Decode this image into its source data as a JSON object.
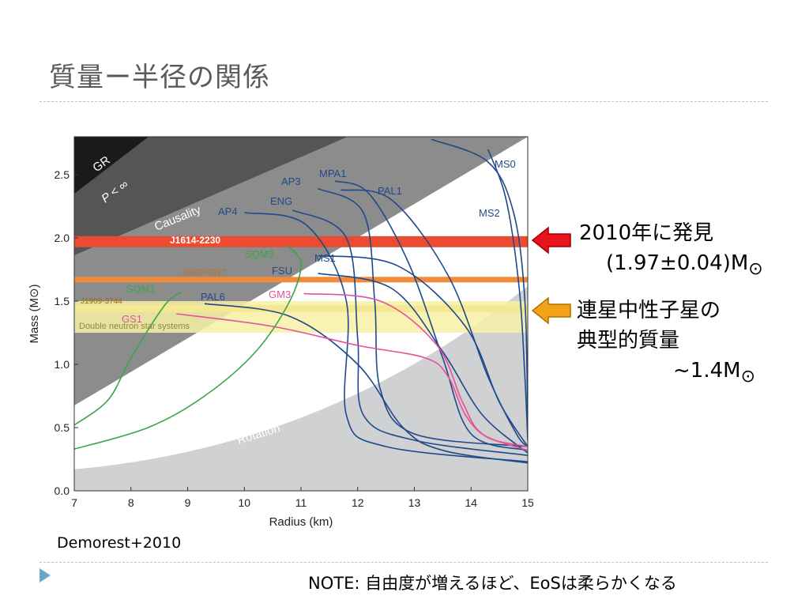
{
  "slide": {
    "title": "質量ー半径の関係",
    "credit": "Demorest+2010",
    "footnote": "NOTE: 自由度が増えるほど、EoSは柔らかくなる",
    "annotation_top": {
      "line1": "2010年に発見",
      "line2": "(1.97±0.04)M",
      "symbol": "⊙",
      "arrow_color": "#e8121a"
    },
    "annotation_bottom": {
      "line1": "連星中性子星の",
      "line2": "典型的質量",
      "line3": "~1.4M",
      "symbol": "⊙",
      "arrow_color": "#f4a11a"
    }
  },
  "chart_data": {
    "type": "line",
    "xlabel": "Radius (km)",
    "ylabel": "Mass (M⊙)",
    "xlim": [
      7,
      15
    ],
    "ylim": [
      0,
      2.8
    ],
    "xticks": [
      "7",
      "8",
      "9",
      "10",
      "11",
      "12",
      "13",
      "14",
      "15"
    ],
    "yticks": [
      "0.0",
      "0.5",
      "1.0",
      "1.5",
      "2.0",
      "2.5"
    ],
    "regions": [
      {
        "name": "GR",
        "color": "#1a1a1a"
      },
      {
        "name": "P < ∞",
        "color": "#555555"
      },
      {
        "name": "Causality",
        "color": "#8c8c8c"
      },
      {
        "name": "Rotation",
        "color": "#cfd1d3"
      }
    ],
    "bands": [
      {
        "label": "J1614-2230",
        "mass": 1.97,
        "color": "#ea4b31",
        "text_color": "#ffffff"
      },
      {
        "label": "J1903+0327",
        "mass": 1.67,
        "color": "#f28a3c",
        "text_color": "#c26a1a"
      },
      {
        "label": "J1909-3744",
        "mass": 1.44,
        "color": "#e8b526",
        "text_color": "#9a6f00"
      },
      {
        "label": "Double neutron star systems",
        "mass_range": [
          1.25,
          1.5
        ],
        "color": "#f7f1a6",
        "text_color": "#8f8a3a"
      }
    ],
    "series": [
      {
        "name": "MS0",
        "color": "#1f4a8a",
        "points": [
          [
            13.3,
            2.78
          ],
          [
            14.3,
            2.6
          ],
          [
            14.75,
            2.2
          ],
          [
            14.95,
            1.5
          ],
          [
            15.0,
            0.5
          ]
        ]
      },
      {
        "name": "MS2",
        "color": "#1f4a8a",
        "points": [
          [
            14.3,
            2.7
          ],
          [
            14.62,
            2.3
          ],
          [
            14.85,
            1.6
          ],
          [
            14.95,
            0.9
          ],
          [
            15.0,
            0.4
          ]
        ]
      },
      {
        "name": "MPA1",
        "color": "#1f4a8a",
        "points": [
          [
            11.6,
            2.45
          ],
          [
            12.2,
            2.35
          ],
          [
            12.9,
            1.8
          ],
          [
            13.5,
            1.05
          ],
          [
            14.0,
            0.45
          ],
          [
            15.0,
            0.32
          ]
        ]
      },
      {
        "name": "PAL1",
        "color": "#1f4a8a",
        "points": [
          [
            11.7,
            2.38
          ],
          [
            12.6,
            2.3
          ],
          [
            13.6,
            1.7
          ],
          [
            14.3,
            0.9
          ],
          [
            14.8,
            0.45
          ],
          [
            15.0,
            0.35
          ]
        ]
      },
      {
        "name": "AP3",
        "color": "#1f4a8a",
        "points": [
          [
            11.3,
            2.39
          ],
          [
            12.1,
            2.2
          ],
          [
            12.3,
            1.5
          ],
          [
            12.4,
            0.8
          ],
          [
            13.0,
            0.45
          ],
          [
            15.0,
            0.35
          ]
        ]
      },
      {
        "name": "ENG",
        "color": "#1f4a8a",
        "points": [
          [
            10.85,
            2.22
          ],
          [
            11.8,
            2.0
          ],
          [
            12.0,
            1.2
          ],
          [
            12.1,
            0.6
          ],
          [
            13.0,
            0.4
          ],
          [
            15.0,
            0.28
          ]
        ]
      },
      {
        "name": "AP4",
        "color": "#1f4a8a",
        "points": [
          [
            10.0,
            2.2
          ],
          [
            11.1,
            2.1
          ],
          [
            11.8,
            1.5
          ],
          [
            11.8,
            0.6
          ],
          [
            12.5,
            0.35
          ],
          [
            15.0,
            0.23
          ]
        ]
      },
      {
        "name": "MS1",
        "color": "#1f4a8a",
        "points": [
          [
            11.3,
            1.86
          ],
          [
            12.7,
            1.78
          ],
          [
            13.9,
            1.3
          ],
          [
            14.5,
            0.7
          ],
          [
            15.0,
            0.35
          ]
        ]
      },
      {
        "name": "FSU",
        "color": "#1f4a8a",
        "points": [
          [
            11.3,
            1.72
          ],
          [
            12.6,
            1.6
          ],
          [
            13.5,
            1.1
          ],
          [
            14.2,
            0.6
          ],
          [
            15.0,
            0.3
          ]
        ]
      },
      {
        "name": "PAL6",
        "color": "#1f4a8a",
        "points": [
          [
            9.3,
            1.48
          ],
          [
            10.8,
            1.38
          ],
          [
            12.0,
            1.0
          ],
          [
            12.8,
            0.5
          ],
          [
            13.5,
            0.32
          ],
          [
            15.0,
            0.22
          ]
        ]
      },
      {
        "name": "GM3",
        "color": "#e8509a",
        "points": [
          [
            11.05,
            1.56
          ],
          [
            12.4,
            1.5
          ],
          [
            13.4,
            1.15
          ],
          [
            13.85,
            0.7
          ],
          [
            14.2,
            0.45
          ],
          [
            15.0,
            0.32
          ]
        ]
      },
      {
        "name": "GS1",
        "color": "#e8509a",
        "points": [
          [
            8.8,
            1.4
          ],
          [
            10.5,
            1.3
          ],
          [
            12.0,
            1.15
          ],
          [
            13.2,
            1.05
          ],
          [
            13.6,
            0.9
          ],
          [
            13.9,
            0.6
          ],
          [
            14.3,
            0.42
          ],
          [
            15.0,
            0.35
          ]
        ]
      },
      {
        "name": "SQM1",
        "color": "#3aa64a",
        "points": [
          [
            8.9,
            1.57
          ],
          [
            8.6,
            1.47
          ],
          [
            8.0,
            1.05
          ],
          [
            7.6,
            0.72
          ],
          [
            7.0,
            0.52
          ]
        ]
      },
      {
        "name": "SQM3",
        "color": "#3aa64a",
        "points": [
          [
            10.75,
            1.94
          ],
          [
            11.0,
            1.8
          ],
          [
            10.8,
            1.5
          ],
          [
            10.2,
            1.1
          ],
          [
            9.3,
            0.75
          ],
          [
            8.3,
            0.5
          ],
          [
            7.0,
            0.33
          ]
        ]
      }
    ],
    "grid": false,
    "legend": "none"
  }
}
